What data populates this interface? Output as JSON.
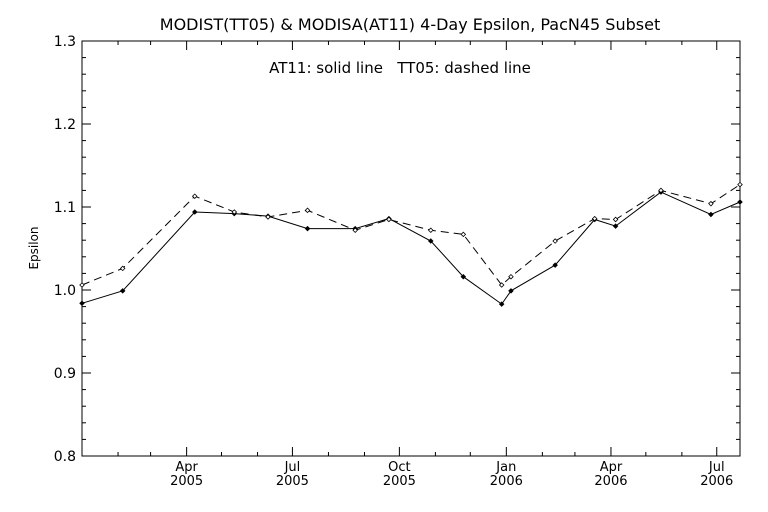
{
  "chart_data": {
    "type": "line",
    "title": "MODIST(TT05) & MODISA(AT11) 4-Day Epsilon, PacN45 Subset",
    "annotation": "AT11: solid line   TT05: dashed line",
    "ylabel": "Epsilon",
    "xlabel": "",
    "ylim": [
      0.8,
      1.3
    ],
    "xlim": [
      "2005-01-01",
      "2006-07-21"
    ],
    "grid": false,
    "yticks": [
      {
        "value": 0.8,
        "label": "0.8"
      },
      {
        "value": 0.9,
        "label": "0.9"
      },
      {
        "value": 1.0,
        "label": "1.0"
      },
      {
        "value": 1.1,
        "label": "1.1"
      },
      {
        "value": 1.2,
        "label": "1.2"
      },
      {
        "value": 1.3,
        "label": "1.3"
      }
    ],
    "xticks": [
      {
        "date": "2005-04-01",
        "month": "Apr",
        "year": "2005"
      },
      {
        "date": "2005-07-01",
        "month": "Jul",
        "year": "2005"
      },
      {
        "date": "2005-10-01",
        "month": "Oct",
        "year": "2005"
      },
      {
        "date": "2006-01-01",
        "month": "Jan",
        "year": "2006"
      },
      {
        "date": "2006-04-01",
        "month": "Apr",
        "year": "2006"
      },
      {
        "date": "2006-07-01",
        "month": "Jul",
        "year": "2006"
      }
    ],
    "series": [
      {
        "name": "AT11",
        "style": "solid",
        "points": [
          {
            "x": "2005-01-01",
            "y": 0.984
          },
          {
            "x": "2005-02-05",
            "y": 0.999
          },
          {
            "x": "2005-04-08",
            "y": 1.094
          },
          {
            "x": "2005-05-12",
            "y": 1.092
          },
          {
            "x": "2005-06-10",
            "y": 1.089
          },
          {
            "x": "2005-07-14",
            "y": 1.074
          },
          {
            "x": "2005-08-24",
            "y": 1.074
          },
          {
            "x": "2005-09-22",
            "y": 1.086
          },
          {
            "x": "2005-10-28",
            "y": 1.059
          },
          {
            "x": "2005-11-25",
            "y": 1.016
          },
          {
            "x": "2005-12-28",
            "y": 0.983
          },
          {
            "x": "2006-01-05",
            "y": 0.999
          },
          {
            "x": "2006-02-12",
            "y": 1.03
          },
          {
            "x": "2006-03-18",
            "y": 1.085
          },
          {
            "x": "2006-04-05",
            "y": 1.077
          },
          {
            "x": "2006-05-14",
            "y": 1.118
          },
          {
            "x": "2006-06-26",
            "y": 1.091
          },
          {
            "x": "2006-07-21",
            "y": 1.106
          }
        ]
      },
      {
        "name": "TT05",
        "style": "dashed",
        "points": [
          {
            "x": "2005-01-01",
            "y": 1.006
          },
          {
            "x": "2005-02-05",
            "y": 1.026
          },
          {
            "x": "2005-04-08",
            "y": 1.113
          },
          {
            "x": "2005-05-12",
            "y": 1.094
          },
          {
            "x": "2005-06-10",
            "y": 1.088
          },
          {
            "x": "2005-07-14",
            "y": 1.096
          },
          {
            "x": "2005-08-24",
            "y": 1.072
          },
          {
            "x": "2005-09-22",
            "y": 1.085
          },
          {
            "x": "2005-10-28",
            "y": 1.072
          },
          {
            "x": "2005-11-25",
            "y": 1.067
          },
          {
            "x": "2005-12-28",
            "y": 1.006
          },
          {
            "x": "2006-01-05",
            "y": 1.016
          },
          {
            "x": "2006-02-12",
            "y": 1.059
          },
          {
            "x": "2006-03-18",
            "y": 1.086
          },
          {
            "x": "2006-04-05",
            "y": 1.085
          },
          {
            "x": "2006-05-14",
            "y": 1.12
          },
          {
            "x": "2006-06-26",
            "y": 1.104
          },
          {
            "x": "2006-07-21",
            "y": 1.127
          }
        ]
      }
    ]
  }
}
